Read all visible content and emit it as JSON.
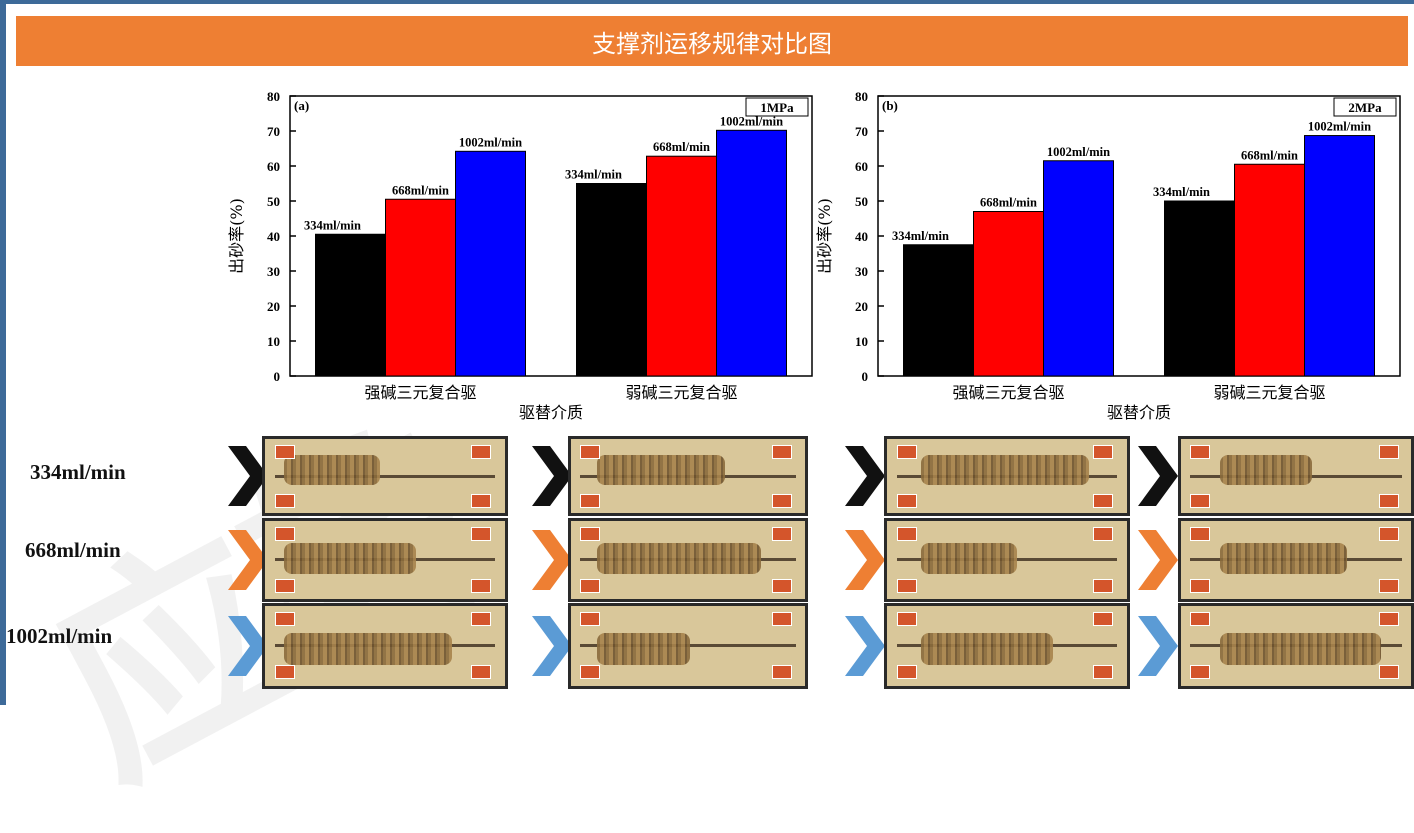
{
  "header": {
    "title": "支撑剂运移规律对比图"
  },
  "colors": {
    "header": "#ee7f33",
    "frame": "#3d6a99",
    "series": [
      "#000000",
      "#ff0000",
      "#0000ff"
    ],
    "chevrons": [
      "#111111",
      "#ee7f33",
      "#5b9bd5"
    ]
  },
  "watermark": "应转",
  "chart_data": [
    {
      "type": "bar",
      "tag": "(a)",
      "pressure": "1MPa",
      "categories": [
        "强碱三元复合驱",
        "弱碱三元复合驱"
      ],
      "series": [
        {
          "name": "334ml/min",
          "values": [
            40.5,
            55.0
          ]
        },
        {
          "name": "668ml/min",
          "values": [
            50.5,
            62.8
          ]
        },
        {
          "name": "1002ml/min",
          "values": [
            64.2,
            70.2
          ]
        }
      ],
      "xlabel": "驱替介质",
      "ylabel": "出砂率(%)",
      "ylim": [
        0,
        80
      ],
      "yticks": [
        "0",
        "10",
        "20",
        "30",
        "40",
        "50",
        "60",
        "70",
        "80"
      ]
    },
    {
      "type": "bar",
      "tag": "(b)",
      "pressure": "2MPa",
      "categories": [
        "强碱三元复合驱",
        "弱碱三元复合驱"
      ],
      "series": [
        {
          "name": "334ml/min",
          "values": [
            37.5,
            50.0
          ]
        },
        {
          "name": "668ml/min",
          "values": [
            47.0,
            60.5
          ]
        },
        {
          "name": "1002ml/min",
          "values": [
            61.5,
            68.7
          ]
        }
      ],
      "xlabel": "驱替介质",
      "ylabel": "出砂率(%)",
      "ylim": [
        0,
        80
      ],
      "yticks": [
        "0",
        "10",
        "20",
        "30",
        "40",
        "50",
        "60",
        "70",
        "80"
      ]
    }
  ],
  "photo_rows": [
    {
      "label": "334ml/min"
    },
    {
      "label": "668ml/min"
    },
    {
      "label": "1002ml/min"
    }
  ]
}
